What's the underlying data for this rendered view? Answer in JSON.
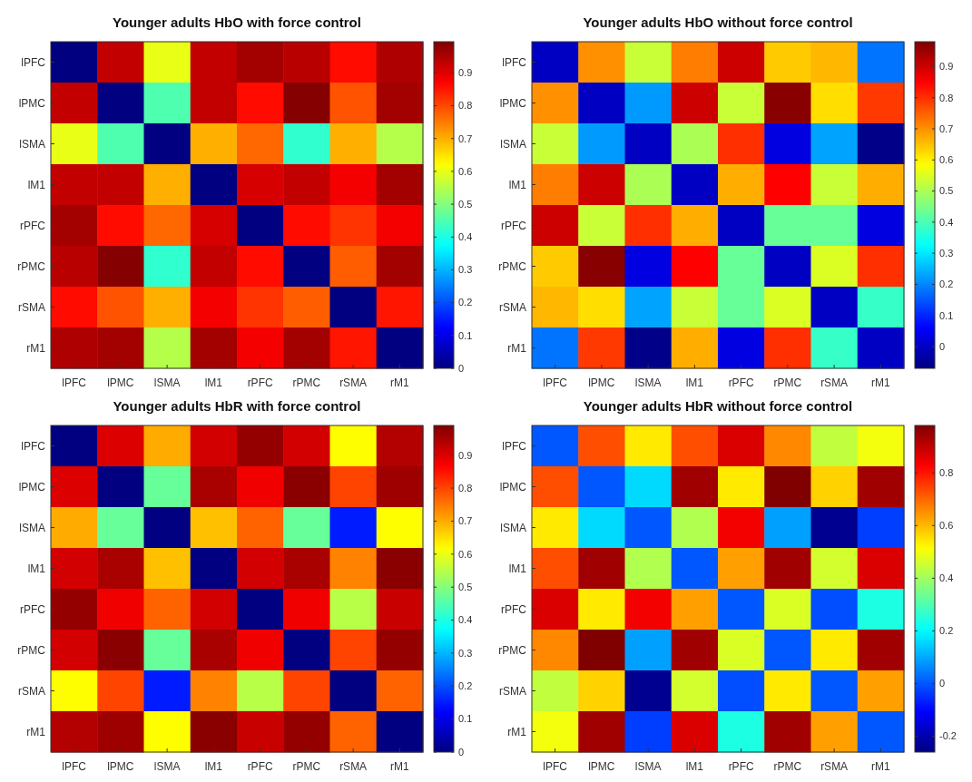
{
  "chart_data": [
    {
      "type": "heatmap",
      "title": "Younger adults HbO with force control",
      "categories": [
        "lPFC",
        "lPMC",
        "lSMA",
        "lM1",
        "rPFC",
        "rPMC",
        "rSMA",
        "rM1"
      ],
      "y_categories": [
        "lPFC",
        "lPMC",
        "lSMA",
        "lM1",
        "rPFC",
        "rPMC",
        "rSMA",
        "rM1"
      ],
      "cells": [
        [
          0,
          0.93,
          0.6,
          0.93,
          0.96,
          0.94,
          0.86,
          0.95
        ],
        [
          0.93,
          0,
          0.45,
          0.93,
          0.86,
          0.99,
          0.79,
          0.96
        ],
        [
          0.6,
          0.45,
          0,
          0.7,
          0.77,
          0.42,
          0.7,
          0.55
        ],
        [
          0.93,
          0.93,
          0.7,
          0,
          0.91,
          0.93,
          0.88,
          0.96
        ],
        [
          0.96,
          0.86,
          0.77,
          0.91,
          0,
          0.86,
          0.82,
          0.88
        ],
        [
          0.94,
          0.99,
          0.42,
          0.93,
          0.86,
          0,
          0.78,
          0.96
        ],
        [
          0.86,
          0.79,
          0.7,
          0.88,
          0.82,
          0.78,
          0,
          0.85
        ],
        [
          0.95,
          0.96,
          0.55,
          0.96,
          0.88,
          0.96,
          0.85,
          0
        ]
      ],
      "clim": [
        0,
        0.995
      ],
      "cticks": [
        0,
        0.1,
        0.2,
        0.3,
        0.4,
        0.5,
        0.6,
        0.7,
        0.8,
        0.9
      ]
    },
    {
      "type": "heatmap",
      "title": "Younger adults HbO without force control",
      "categories": [
        "lPFC",
        "lPMC",
        "lSMA",
        "lM1",
        "rPFC",
        "rPMC",
        "rSMA",
        "rM1"
      ],
      "y_categories": [
        "lPFC",
        "lPMC",
        "lSMA",
        "lM1",
        "rPFC",
        "rPMC",
        "rSMA",
        "rM1"
      ],
      "cells": [
        [
          0,
          0.7,
          0.53,
          0.72,
          0.9,
          0.64,
          0.66,
          0.18
        ],
        [
          0.7,
          0,
          0.22,
          0.9,
          0.53,
          0.97,
          0.62,
          0.79
        ],
        [
          0.53,
          0.22,
          0,
          0.5,
          0.8,
          0.03,
          0.23,
          -0.06
        ],
        [
          0.72,
          0.9,
          0.5,
          0,
          0.67,
          0.85,
          0.53,
          0.67
        ],
        [
          0.9,
          0.53,
          0.8,
          0.67,
          0,
          0.43,
          0.43,
          0.03
        ],
        [
          0.64,
          0.97,
          0.03,
          0.85,
          0.43,
          0,
          0.55,
          0.8
        ],
        [
          0.66,
          0.62,
          0.23,
          0.53,
          0.43,
          0.55,
          0,
          0.38
        ],
        [
          0.18,
          0.79,
          -0.06,
          0.67,
          0.03,
          0.8,
          0.38,
          0
        ]
      ],
      "clim": [
        -0.07,
        0.98
      ],
      "cticks": [
        0,
        0.1,
        0.2,
        0.3,
        0.4,
        0.5,
        0.6,
        0.7,
        0.8,
        0.9
      ]
    },
    {
      "type": "heatmap",
      "title": "Younger adults HbR with force control",
      "categories": [
        "lPFC",
        "lPMC",
        "lSMA",
        "lM1",
        "rPFC",
        "rPMC",
        "rSMA",
        "rM1"
      ],
      "y_categories": [
        "lPFC",
        "lPMC",
        "lSMA",
        "lM1",
        "rPFC",
        "rPMC",
        "rSMA",
        "rM1"
      ],
      "cells": [
        [
          0,
          0.9,
          0.7,
          0.91,
          0.97,
          0.91,
          0.62,
          0.94
        ],
        [
          0.9,
          0,
          0.47,
          0.95,
          0.88,
          0.98,
          0.8,
          0.96
        ],
        [
          0.7,
          0.47,
          0,
          0.68,
          0.77,
          0.47,
          0.15,
          0.62
        ],
        [
          0.91,
          0.95,
          0.68,
          0,
          0.91,
          0.95,
          0.74,
          0.98
        ],
        [
          0.97,
          0.88,
          0.77,
          0.91,
          0,
          0.88,
          0.55,
          0.92
        ],
        [
          0.91,
          0.98,
          0.47,
          0.95,
          0.88,
          0,
          0.8,
          0.97
        ],
        [
          0.62,
          0.8,
          0.15,
          0.74,
          0.55,
          0.8,
          0,
          0.77
        ],
        [
          0.94,
          0.96,
          0.62,
          0.98,
          0.92,
          0.97,
          0.77,
          0
        ]
      ],
      "clim": [
        0,
        0.99
      ],
      "cticks": [
        0,
        0.1,
        0.2,
        0.3,
        0.4,
        0.5,
        0.6,
        0.7,
        0.8,
        0.9
      ]
    },
    {
      "type": "heatmap",
      "title": "Younger adults HbR without force control",
      "categories": [
        "lPFC",
        "lPMC",
        "lSMA",
        "lM1",
        "rPFC",
        "rPMC",
        "rSMA",
        "rM1"
      ],
      "y_categories": [
        "lPFC",
        "lPMC",
        "lSMA",
        "lM1",
        "rPFC",
        "rPMC",
        "rSMA",
        "rM1"
      ],
      "cells": [
        [
          0,
          0.73,
          0.54,
          0.73,
          0.87,
          0.66,
          0.44,
          0.5
        ],
        [
          0.73,
          0,
          0.16,
          0.94,
          0.54,
          0.98,
          0.57,
          0.94
        ],
        [
          0.54,
          0.16,
          0,
          0.42,
          0.84,
          0.09,
          -0.24,
          -0.03
        ],
        [
          0.73,
          0.94,
          0.42,
          0,
          0.63,
          0.94,
          0.46,
          0.87
        ],
        [
          0.87,
          0.54,
          0.84,
          0.63,
          0,
          0.47,
          -0.01,
          0.24
        ],
        [
          0.66,
          0.98,
          0.09,
          0.94,
          0.47,
          0,
          0.54,
          0.94
        ],
        [
          0.44,
          0.57,
          -0.24,
          0.46,
          -0.01,
          0.54,
          0,
          0.63
        ],
        [
          0.5,
          0.94,
          -0.03,
          0.87,
          0.24,
          0.94,
          0.63,
          0
        ]
      ],
      "clim": [
        -0.26,
        0.98
      ],
      "cticks": [
        -0.2,
        0,
        0.2,
        0.4,
        0.6,
        0.8
      ]
    }
  ]
}
